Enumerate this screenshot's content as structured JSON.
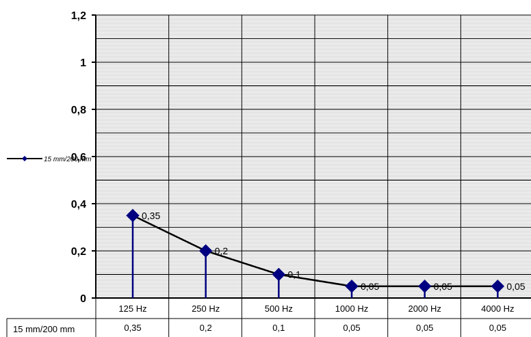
{
  "chart_data": {
    "type": "line",
    "categories": [
      "125 Hz",
      "250 Hz",
      "500 Hz",
      "1000 Hz",
      "2000 Hz",
      "4000 Hz"
    ],
    "series": [
      {
        "name": "15 mm/200 mm",
        "values": [
          0.35,
          0.2,
          0.1,
          0.05,
          0.05,
          0.05
        ],
        "labels": [
          "0,35",
          "0,2",
          "0,1",
          "0,05",
          "0,05",
          "0,05"
        ],
        "color": "#000080",
        "line_color": "#000000"
      }
    ],
    "ylim": [
      0,
      1.2
    ],
    "yticks": [
      0,
      0.2,
      0.4,
      0.6,
      0.8,
      1,
      1.2
    ],
    "ytick_labels": [
      "0",
      "0,2",
      "0,4",
      "0,6",
      "0,8",
      "1",
      "1,2"
    ],
    "grid": true,
    "drop_lines": true,
    "data_table": true,
    "legend_position": "left",
    "legend_label": "15 mm/200 mm",
    "title": "",
    "xlabel": "",
    "ylabel": ""
  }
}
